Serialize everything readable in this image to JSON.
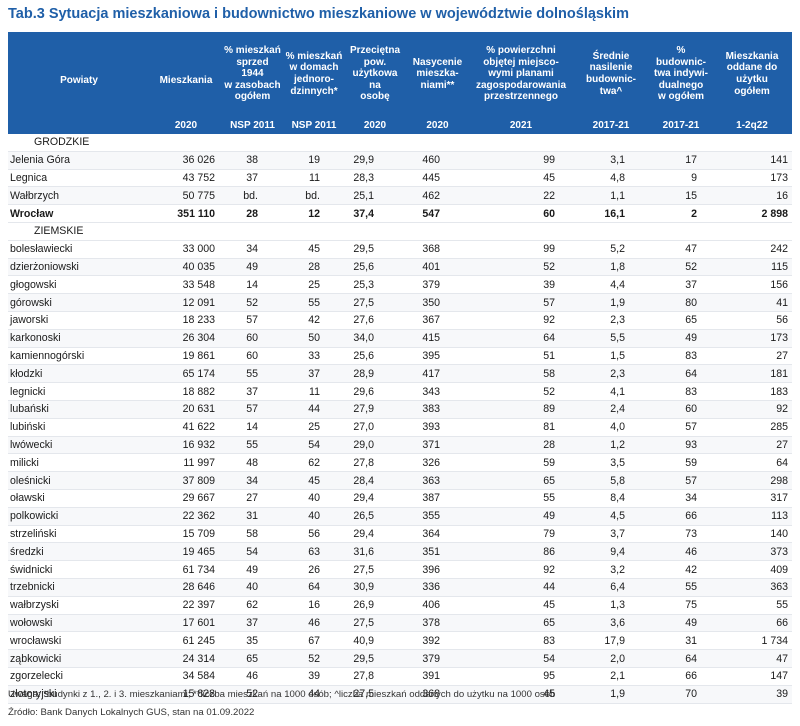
{
  "header": {
    "title": "Tab.3 Sytuacja mieszkaniowa i budownictwo mieszkaniowe w województwie dolnośląskim"
  },
  "table": {
    "columns": [
      {
        "label": "Powiaty",
        "period": ""
      },
      {
        "label": "Mieszkania",
        "period": "2020"
      },
      {
        "label": "% mieszkań\nsprzed 1944\nw zasobach\nogółem",
        "period": "NSP 2011"
      },
      {
        "label": "% mieszkań\nw domach\njednoro-\ndzinnych*",
        "period": "NSP 2011"
      },
      {
        "label": "Przeciętna pow.\nużytkowa na\nosobę",
        "period": "2020"
      },
      {
        "label": "Nasycenie\nmieszka-\nniami**",
        "period": "2020"
      },
      {
        "label": "% powierzchni\nobjętej miejsco-\nwymi planami\nzagospodarowania\nprzestrzennego",
        "period": "2021"
      },
      {
        "label": "Średnie\nnasilenie\nbudownic-\ntwa^",
        "period": "2017-21"
      },
      {
        "label": "% budownic-\ntwa indywi-\ndualnego\nw ogółem",
        "period": "2017-21"
      },
      {
        "label": "Mieszkania\noddane do\nużytku\nogółem",
        "period": "1-2q22"
      }
    ],
    "sections": [
      {
        "label": "GRODZKIE",
        "rows": [
          [
            "Jelenia Góra",
            "36 026",
            "38",
            "19",
            "29,9",
            "460",
            "99",
            "3,1",
            "17",
            "141"
          ],
          [
            "Legnica",
            "43 752",
            "37",
            "11",
            "28,3",
            "445",
            "45",
            "4,8",
            "9",
            "173"
          ],
          [
            "Wałbrzych",
            "50 775",
            "bd.",
            "bd.",
            "25,1",
            "462",
            "22",
            "1,1",
            "15",
            "16"
          ],
          [
            "Wrocław",
            "351 110",
            "28",
            "12",
            "37,4",
            "547",
            "60",
            "16,1",
            "2",
            "2 898"
          ]
        ]
      },
      {
        "label": "ZIEMSKIE",
        "rows": [
          [
            "bolesławiecki",
            "33 000",
            "34",
            "45",
            "29,5",
            "368",
            "99",
            "5,2",
            "47",
            "242"
          ],
          [
            "dzierżoniowski",
            "40 035",
            "49",
            "28",
            "25,6",
            "401",
            "52",
            "1,8",
            "52",
            "115"
          ],
          [
            "głogowski",
            "33 548",
            "14",
            "25",
            "25,3",
            "379",
            "39",
            "4,4",
            "37",
            "156"
          ],
          [
            "górowski",
            "12 091",
            "52",
            "55",
            "27,5",
            "350",
            "57",
            "1,9",
            "80",
            "41"
          ],
          [
            "jaworski",
            "18 233",
            "57",
            "42",
            "27,6",
            "367",
            "92",
            "2,3",
            "65",
            "56"
          ],
          [
            "karkonoski",
            "26 304",
            "60",
            "50",
            "34,0",
            "415",
            "64",
            "5,5",
            "49",
            "173"
          ],
          [
            "kamiennogórski",
            "19 861",
            "60",
            "33",
            "25,6",
            "395",
            "51",
            "1,5",
            "83",
            "27"
          ],
          [
            "kłodzki",
            "65 174",
            "55",
            "37",
            "28,9",
            "417",
            "58",
            "2,3",
            "64",
            "181"
          ],
          [
            "legnicki",
            "18 882",
            "37",
            "11",
            "29,6",
            "343",
            "52",
            "4,1",
            "83",
            "183"
          ],
          [
            "lubański",
            "20 631",
            "57",
            "44",
            "27,9",
            "383",
            "89",
            "2,4",
            "60",
            "92"
          ],
          [
            "lubiński",
            "41 622",
            "14",
            "25",
            "27,0",
            "393",
            "81",
            "4,0",
            "57",
            "285"
          ],
          [
            "lwówecki",
            "16 932",
            "55",
            "54",
            "29,0",
            "371",
            "28",
            "1,2",
            "93",
            "27"
          ],
          [
            "milicki",
            "11 997",
            "48",
            "62",
            "27,8",
            "326",
            "59",
            "3,5",
            "59",
            "64"
          ],
          [
            "oleśnicki",
            "37 809",
            "34",
            "45",
            "28,4",
            "363",
            "65",
            "5,8",
            "57",
            "298"
          ],
          [
            "oławski",
            "29 667",
            "27",
            "40",
            "29,4",
            "387",
            "55",
            "8,4",
            "34",
            "317"
          ],
          [
            "polkowicki",
            "22 362",
            "31",
            "40",
            "26,5",
            "355",
            "49",
            "4,5",
            "66",
            "113"
          ],
          [
            "strzeliński",
            "15 709",
            "58",
            "56",
            "29,4",
            "364",
            "79",
            "3,7",
            "73",
            "140"
          ],
          [
            "średzki",
            "19 465",
            "54",
            "63",
            "31,6",
            "351",
            "86",
            "9,4",
            "46",
            "373"
          ],
          [
            "świdnicki",
            "61 734",
            "49",
            "26",
            "27,5",
            "396",
            "92",
            "3,2",
            "42",
            "409"
          ],
          [
            "trzebnicki",
            "28 646",
            "40",
            "64",
            "30,9",
            "336",
            "44",
            "6,4",
            "55",
            "363"
          ],
          [
            "wałbrzyski",
            "22 397",
            "62",
            "16",
            "26,9",
            "406",
            "45",
            "1,3",
            "75",
            "55"
          ],
          [
            "wołowski",
            "17 601",
            "37",
            "46",
            "27,5",
            "378",
            "65",
            "3,6",
            "49",
            "66"
          ],
          [
            "wrocławski",
            "61 245",
            "35",
            "67",
            "40,9",
            "392",
            "83",
            "17,9",
            "31",
            "1 734"
          ],
          [
            "ząbkowicki",
            "24 314",
            "65",
            "52",
            "29,5",
            "379",
            "54",
            "2,0",
            "64",
            "47"
          ],
          [
            "zgorzelecki",
            "34 584",
            "46",
            "39",
            "27,8",
            "391",
            "95",
            "2,1",
            "66",
            "147"
          ],
          [
            "złotoryjski",
            "15 828",
            "52",
            "44",
            "27,5",
            "368",
            "45",
            "1,9",
            "70",
            "39"
          ]
        ]
      }
    ]
  },
  "notes": {
    "note": "Uwaga: *budynki z 1., 2. i 3. mieszkaniami; **liczba mieszkań na 1000 osób; ^liczba mieszkań oddanych do użytku na 1000 osób",
    "source": "Źródło: Bank Danych Lokalnych GUS, stan na 01.09.2022"
  }
}
